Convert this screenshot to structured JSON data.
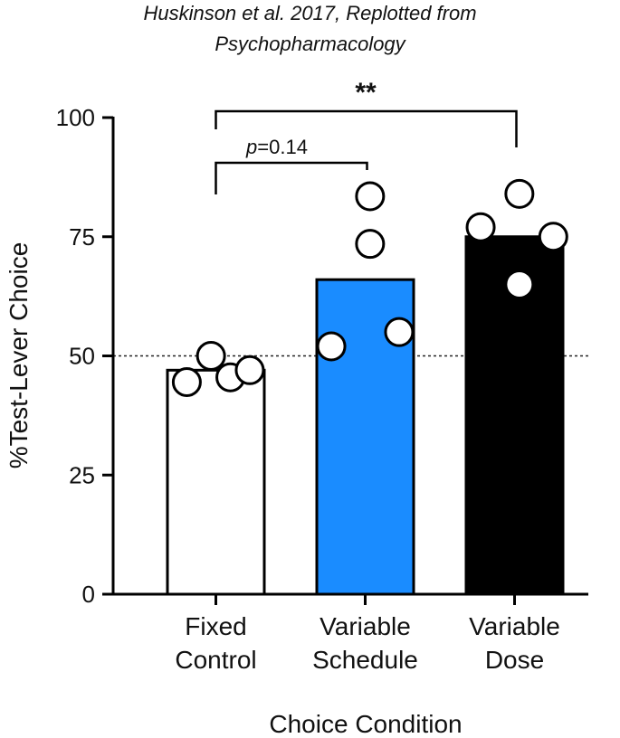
{
  "chart_data": {
    "type": "bar",
    "title_line1": "Huskinson et al. 2017, Replotted from",
    "title_line2": "Psychopharmacology",
    "xlabel": "Choice Condition",
    "ylabel": "%Test-Lever Choice",
    "ylim": [
      0,
      100
    ],
    "yticks": [
      "0",
      "25",
      "50",
      "75",
      "100"
    ],
    "ytick_values": [
      0,
      25,
      50,
      75,
      100
    ],
    "reference_line": 50,
    "categories": [
      {
        "line1": "Fixed",
        "line2": "Control"
      },
      {
        "line1": "Variable",
        "line2": "Schedule"
      },
      {
        "line1": "Variable",
        "line2": "Dose"
      }
    ],
    "values": [
      47,
      66,
      75
    ],
    "bar_colors": [
      "#ffffff",
      "#1a8cff",
      "#000000"
    ],
    "points": [
      [
        [
          0.2,
          44.5
        ],
        [
          0.45,
          50
        ],
        [
          0.65,
          45.5
        ],
        [
          0.85,
          47
        ]
      ],
      [
        [
          0.55,
          83.5
        ],
        [
          0.55,
          73.5
        ],
        [
          0.15,
          52
        ],
        [
          0.85,
          55
        ]
      ],
      [
        [
          0.15,
          77
        ],
        [
          0.55,
          84
        ],
        [
          0.55,
          65
        ],
        [
          0.9,
          75
        ]
      ]
    ],
    "comparisons": [
      {
        "from": 0,
        "to": 1,
        "label_prefix": "p",
        "label_rest": "=0.14"
      },
      {
        "from": 0,
        "to": 2,
        "label": "**"
      }
    ]
  }
}
